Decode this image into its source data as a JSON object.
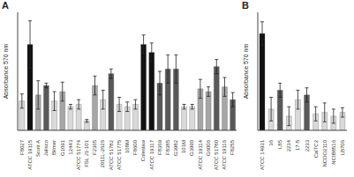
{
  "chart_data": [
    {
      "type": "bar",
      "title": "A",
      "ylabel": "Absorbance 570 nm",
      "categories": [
        "F8027",
        "ATCC 19115",
        "Scott A",
        "Jalisco",
        "Bilmer",
        "G1091",
        "12443",
        "ATCC 51774",
        "FSL J1-101",
        "F2365",
        "2011L-2626",
        "ATCC 51782",
        "ATCC 51775",
        "108M",
        "F8600",
        "Coleslaw",
        "ATCC 19117",
        "F8369",
        "F8385",
        "G3982",
        "101M",
        "G3990",
        "ATCC 19114",
        "G6006",
        "ATCC 51780",
        "ATCC 19116",
        "F8255"
      ],
      "values": [
        0.62,
        1.82,
        0.75,
        0.95,
        0.62,
        0.82,
        0.5,
        0.55,
        0.2,
        0.95,
        0.65,
        1.2,
        0.55,
        0.5,
        0.55,
        1.82,
        1.65,
        1.0,
        1.3,
        1.3,
        0.5,
        0.5,
        0.88,
        0.82,
        1.35,
        0.92,
        0.65
      ],
      "errors": [
        0.15,
        0.5,
        0.3,
        0.05,
        0.2,
        0.2,
        0.05,
        0.1,
        0.03,
        0.2,
        0.2,
        0.1,
        0.15,
        0.1,
        0.1,
        0.2,
        0.2,
        0.25,
        0.3,
        0.3,
        0.05,
        0.05,
        0.2,
        0.1,
        0.15,
        0.2,
        0.15
      ],
      "colors": [
        "#d9d9d9",
        "#111111",
        "#a6a6a6",
        "#595959",
        "#d9d9d9",
        "#a6a6a6",
        "#d9d9d9",
        "#d9d9d9",
        "#d9d9d9",
        "#a6a6a6",
        "#d9d9d9",
        "#595959",
        "#d9d9d9",
        "#d9d9d9",
        "#d9d9d9",
        "#111111",
        "#111111",
        "#595959",
        "#595959",
        "#595959",
        "#d9d9d9",
        "#d9d9d9",
        "#a6a6a6",
        "#a6a6a6",
        "#595959",
        "#a6a6a6",
        "#595959"
      ],
      "ylim": [
        0,
        2.5
      ],
      "tick_labels": "x"
    },
    {
      "type": "bar",
      "title": "B",
      "ylabel": "Absorbance 570 nm",
      "categories": [
        "ATCC 14931",
        "36",
        "L85",
        "2234",
        "17-5",
        "2233",
        "CalTC2",
        "NCDO2110",
        "NCIB8516",
        "LB706"
      ],
      "values": [
        2.05,
        0.45,
        0.85,
        0.3,
        0.65,
        0.75,
        0.35,
        0.38,
        0.3,
        0.38
      ],
      "errors": [
        0.25,
        0.25,
        0.15,
        0.2,
        0.2,
        0.15,
        0.15,
        0.2,
        0.15,
        0.1
      ],
      "colors": [
        "#111111",
        "#d9d9d9",
        "#595959",
        "#d9d9d9",
        "#d9d9d9",
        "#595959",
        "#d9d9d9",
        "#d9d9d9",
        "#d9d9d9",
        "#d9d9d9"
      ],
      "ylim": [
        0,
        2.5
      ],
      "tick_labels": "x"
    }
  ]
}
